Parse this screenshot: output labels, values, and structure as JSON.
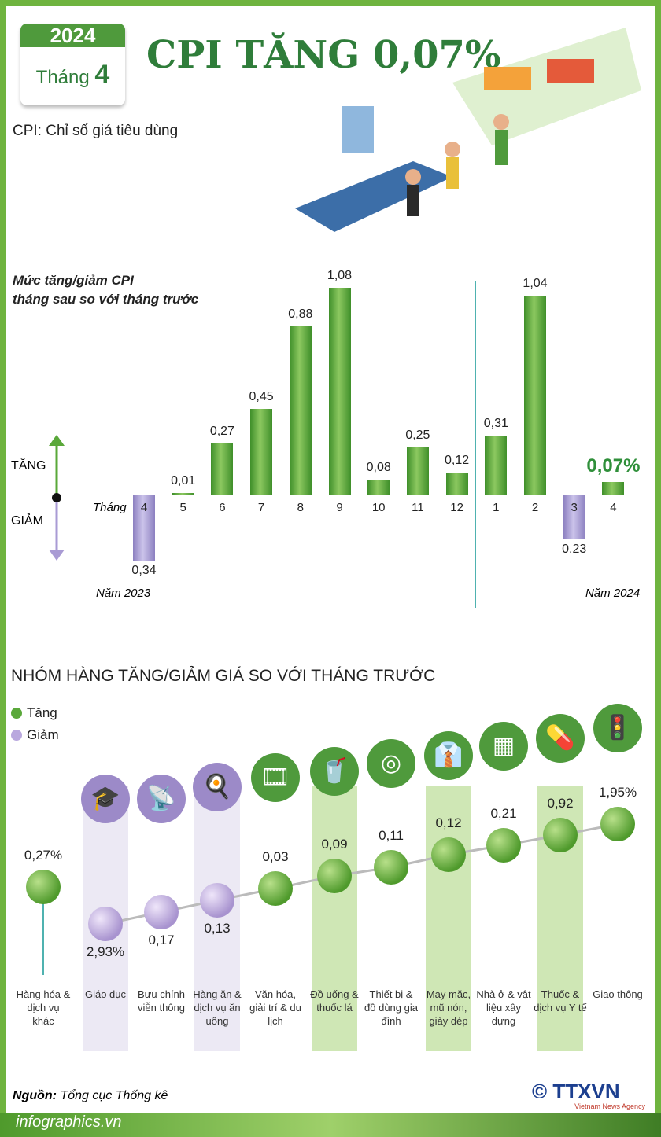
{
  "header": {
    "year": "2024",
    "month_label": "Tháng",
    "month": "4",
    "title": "CPI TĂNG 0,07%",
    "subtitle": "CPI: Chỉ số giá tiêu dùng"
  },
  "chart_data": [
    {
      "type": "bar",
      "title": "Mức tăng/giảm CPI tháng sau so với tháng trước",
      "title_lines": [
        "Mức tăng/giảm CPI",
        "tháng sau so với tháng trước"
      ],
      "x_axis_label": "Tháng",
      "categories": [
        "4",
        "5",
        "6",
        "7",
        "8",
        "9",
        "10",
        "11",
        "12",
        "1",
        "2",
        "3",
        "4"
      ],
      "labels": [
        "0,34",
        "0,01",
        "0,27",
        "0,45",
        "0,88",
        "1,08",
        "0,08",
        "0,25",
        "0,12",
        "0,31",
        "1,04",
        "0,23",
        "0,07%"
      ],
      "values": [
        -0.34,
        0.01,
        0.27,
        0.45,
        0.88,
        1.08,
        0.08,
        0.25,
        0.12,
        0.31,
        1.04,
        -0.23,
        0.07
      ],
      "year_labels": [
        "Năm 2023",
        "Năm 2024"
      ],
      "up_label": "TĂNG",
      "down_label": "GIẢM",
      "colors": {
        "up": "#5aa83a",
        "down": "#a99bd4"
      }
    },
    {
      "type": "line",
      "title": "NHÓM HÀNG TĂNG/GIẢM GIÁ SO VỚI THÁNG TRƯỚC",
      "legend": [
        {
          "label": "Tăng",
          "color": "#5aa83a"
        },
        {
          "label": "Giảm",
          "color": "#b9a8de"
        }
      ],
      "groups": [
        {
          "name": "Hàng hóa & dịch vụ khác",
          "label": "0,27%",
          "value": 0.27,
          "icon": "none"
        },
        {
          "name": "Giáo dục",
          "label": "2,93%",
          "value": -2.93,
          "icon": "graduation-cap"
        },
        {
          "name": "Bưu chính viễn thông",
          "label": "0,17",
          "value": -0.17,
          "icon": "antenna"
        },
        {
          "name": "Hàng ăn & dịch vụ ăn uống",
          "label": "0,13",
          "value": -0.13,
          "icon": "meal"
        },
        {
          "name": "Văn hóa, giải trí & du lịch",
          "label": "0,03",
          "value": 0.03,
          "icon": "film-reel"
        },
        {
          "name": "Đồ uống & thuốc lá",
          "label": "0,09",
          "value": 0.09,
          "icon": "drink-cigarette"
        },
        {
          "name": "Thiết bị & đồ dùng gia đình",
          "label": "0,11",
          "value": 0.11,
          "icon": "washing-machine"
        },
        {
          "name": "May mặc, mũ nón, giày dép",
          "label": "0,12",
          "value": 0.12,
          "icon": "shirt-shoes"
        },
        {
          "name": "Nhà ở & vật liệu xây dựng",
          "label": "0,21",
          "value": 0.21,
          "icon": "bricks"
        },
        {
          "name": "Thuốc & dịch vụ Y tế",
          "label": "0,92",
          "value": 0.92,
          "icon": "pills"
        },
        {
          "name": "Giao thông",
          "label": "1,95%",
          "value": 1.95,
          "icon": "traffic-light"
        }
      ]
    }
  ],
  "footer": {
    "source_label": "Nguồn:",
    "source": "Tổng cục Thống kê",
    "site": "infographics.vn",
    "copyright": "©",
    "agency": "TTXVN",
    "agency_sub": "Vietnam News Agency"
  }
}
